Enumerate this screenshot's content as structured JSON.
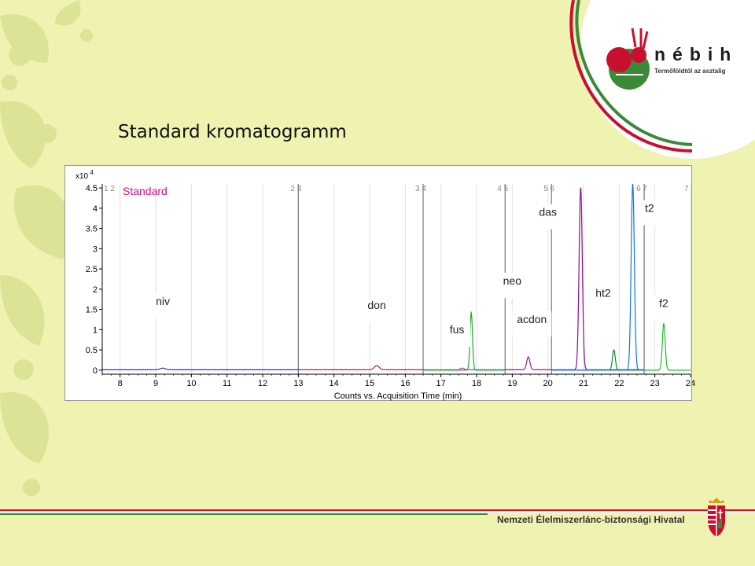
{
  "slide": {
    "title": "Standard kromatogramm"
  },
  "logo": {
    "name": "nébih",
    "tagline": "Termőföldtől az asztalig"
  },
  "footer": {
    "organization": "Nemzeti Élelmiszerlánc-biztonsági Hivatal"
  },
  "colors": {
    "background": "#f0f2b2",
    "accent_red": "#c8102e",
    "accent_green": "#3a8a3a",
    "leaf_decor": "#dfe49a"
  },
  "chart_data": {
    "type": "line",
    "title": "Standard",
    "xlabel": "Counts vs. Acquisition Time (min)",
    "yscale_label": "x10 4",
    "xlim": [
      7.5,
      24
    ],
    "ylim": [
      -0.1,
      4.6
    ],
    "x_ticks": [
      8,
      9,
      10,
      11,
      12,
      13,
      14,
      15,
      16,
      17,
      18,
      19,
      20,
      21,
      22,
      23,
      24
    ],
    "x_tick_labels": [
      "8",
      "9",
      "10",
      "11",
      "12",
      "13",
      "14",
      "15",
      "16",
      "17",
      "18",
      "19",
      "20",
      "21",
      "22",
      "23",
      "24"
    ],
    "y_ticks": [
      0,
      0.5,
      1,
      1.5,
      2,
      2.5,
      3,
      3.5,
      4,
      4.5
    ],
    "y_tick_labels": [
      "0",
      "0.5",
      "1",
      "1.5",
      "2",
      "2.5",
      "3",
      "3.5",
      "4",
      "4.5"
    ],
    "segments": [
      {
        "label": "1 2",
        "start": 7.5,
        "end": 13.0
      },
      {
        "label": "2 3",
        "start": 13.0,
        "end": 16.5
      },
      {
        "label": "3 4",
        "start": 16.5,
        "end": 18.8
      },
      {
        "label": "4 5",
        "start": 18.8,
        "end": 20.1
      },
      {
        "label": "5 6",
        "start": 20.1,
        "end": 22.7
      },
      {
        "label": "6 7",
        "start": 22.7,
        "end": 24.0
      },
      {
        "label": "7",
        "start": 24.0,
        "end": 24.0
      }
    ],
    "series": [
      {
        "color": "#2233cc",
        "x_start": 7.5,
        "x_end": 13.0,
        "baseline": 0.01,
        "peaks": [
          {
            "rt": 9.2,
            "height": 0.04,
            "width": 0.07
          }
        ]
      },
      {
        "color": "#aa2233",
        "x_start": 13.0,
        "x_end": 16.5,
        "baseline": 0.01,
        "peaks": [
          {
            "rt": 15.2,
            "height": 0.1,
            "width": 0.07
          }
        ]
      },
      {
        "color": "#cc22cc",
        "x_start": 16.5,
        "x_end": 18.8,
        "baseline": 0.01,
        "peaks": [
          {
            "rt": 17.6,
            "height": 0.04,
            "width": 0.05
          }
        ]
      },
      {
        "color": "#22aa33",
        "x_start": 16.5,
        "x_end": 18.8,
        "baseline": 0.0,
        "peaks": [
          {
            "rt": 17.85,
            "height": 1.42,
            "width": 0.035
          }
        ]
      },
      {
        "color": "#882288",
        "x_start": 18.8,
        "x_end": 20.1,
        "baseline": 0.01,
        "peaks": [
          {
            "rt": 19.45,
            "height": 0.32,
            "width": 0.045
          }
        ]
      },
      {
        "color": "#881188",
        "x_start": 20.1,
        "x_end": 22.7,
        "baseline": 0.01,
        "peaks": [
          {
            "rt": 20.92,
            "height": 4.5,
            "width": 0.045
          }
        ]
      },
      {
        "color": "#118833",
        "x_start": 20.1,
        "x_end": 22.7,
        "baseline": 0.0,
        "peaks": [
          {
            "rt": 21.85,
            "height": 0.5,
            "width": 0.04
          }
        ]
      },
      {
        "color": "#1177dd",
        "x_start": 20.1,
        "x_end": 22.7,
        "baseline": 0.0,
        "peaks": [
          {
            "rt": 22.38,
            "height": 4.6,
            "width": 0.045
          }
        ]
      },
      {
        "color": "#22bb33",
        "x_start": 22.7,
        "x_end": 24.0,
        "baseline": 0.0,
        "peaks": [
          {
            "rt": 23.25,
            "height": 1.15,
            "width": 0.04
          }
        ]
      }
    ],
    "annotations": [
      {
        "text": "niv",
        "x": 9.2,
        "y": 1.65
      },
      {
        "text": "don",
        "x": 15.2,
        "y": 1.55
      },
      {
        "text": "fus",
        "x": 17.45,
        "y": 0.95
      },
      {
        "text": "neo",
        "x": 19.0,
        "y": 2.15
      },
      {
        "text": "acdon",
        "x": 19.55,
        "y": 1.2
      },
      {
        "text": "das",
        "x": 20.0,
        "y": 3.85
      },
      {
        "text": "ht2",
        "x": 21.55,
        "y": 1.85
      },
      {
        "text": "t2",
        "x": 22.85,
        "y": 3.95
      },
      {
        "text": "f2",
        "x": 23.25,
        "y": 1.6
      }
    ]
  }
}
